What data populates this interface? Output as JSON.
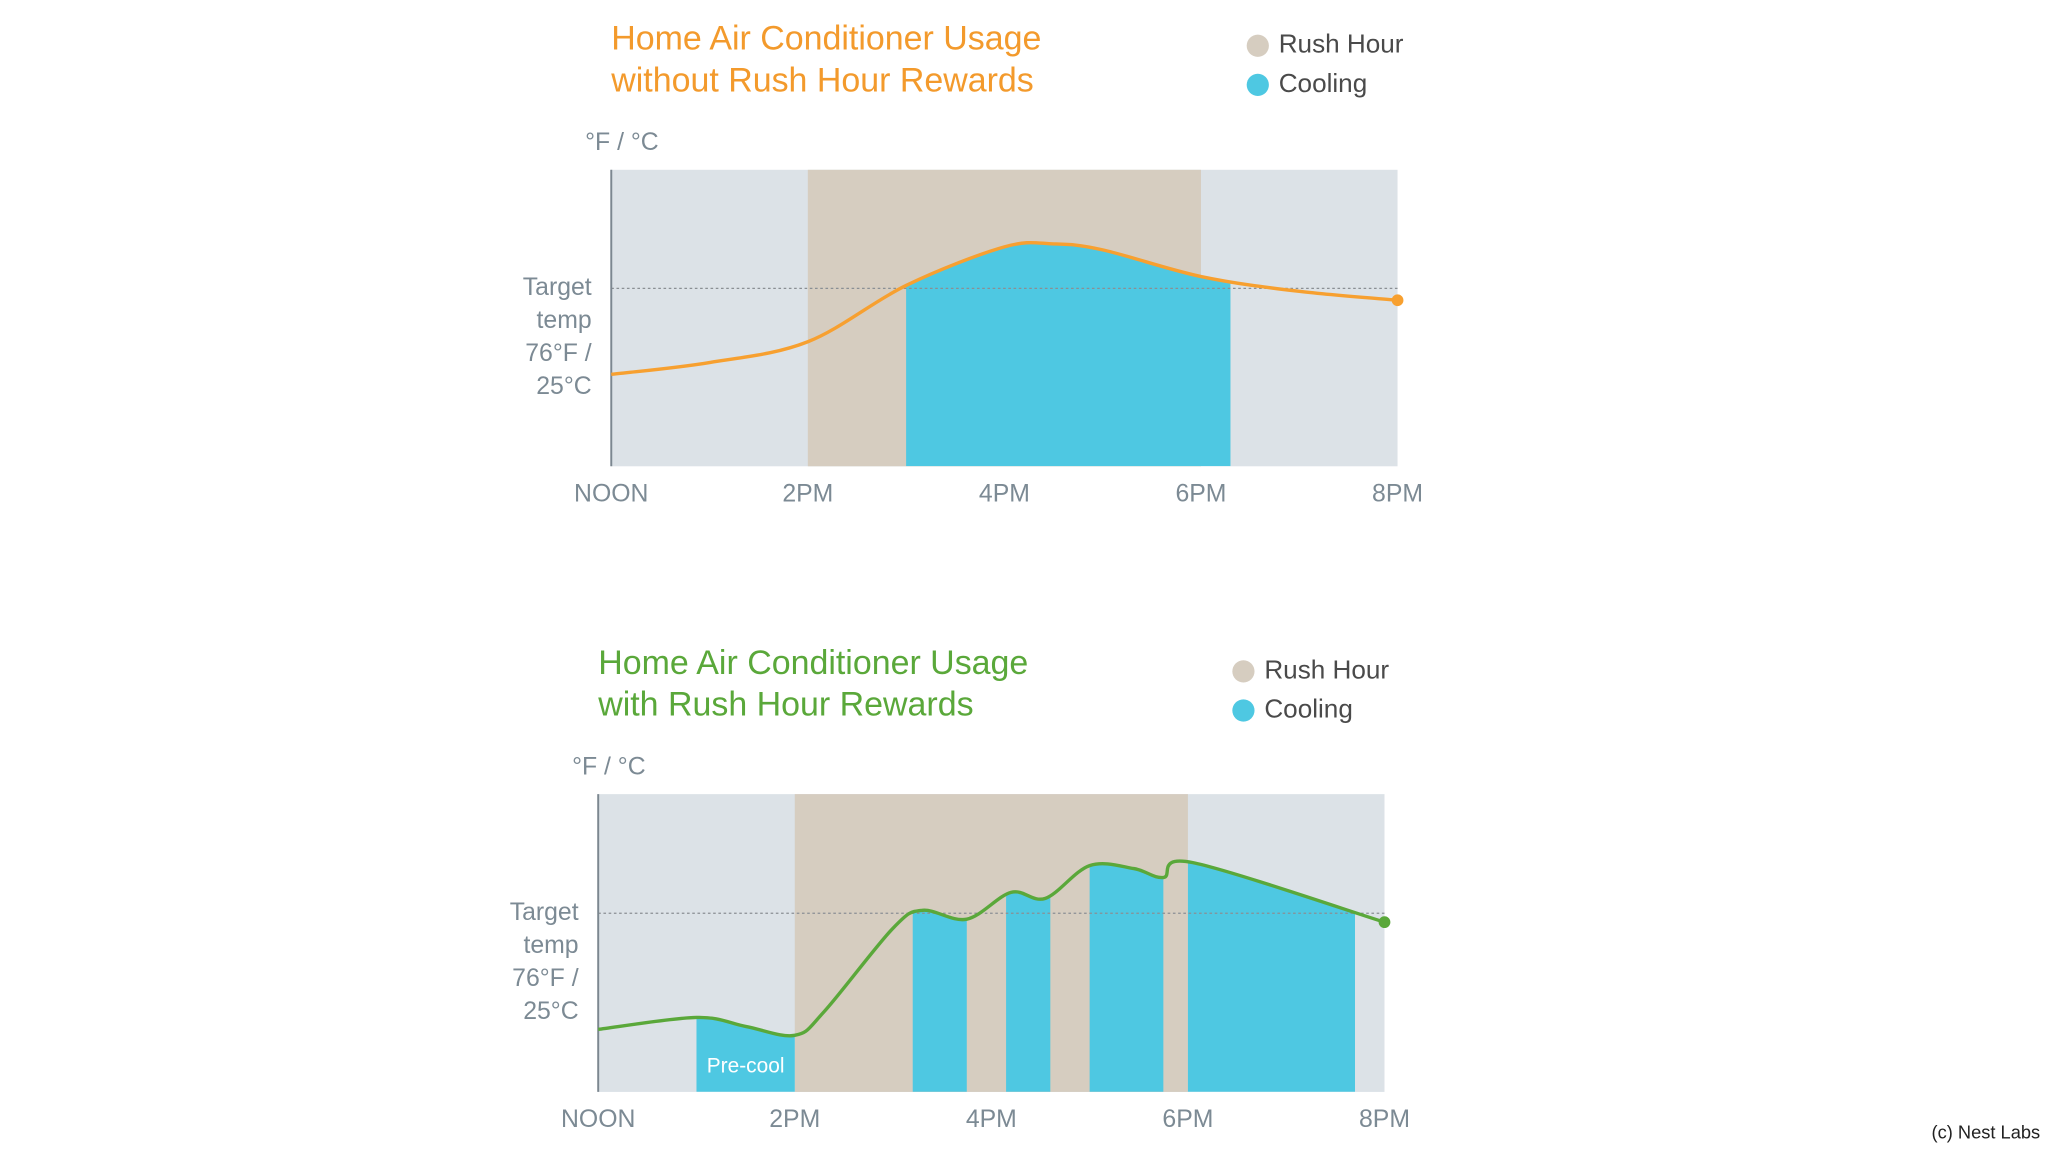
{
  "chart_data": [
    {
      "type": "line",
      "title": [
        "Home Air Conditioner Usage",
        "without Rush Hour Rewards"
      ],
      "title_color": "#f39a2c",
      "y_label": "°F / °C",
      "target": 76,
      "target_label": [
        "Target",
        "temp",
        "76°F /",
        "25°C"
      ],
      "x": [
        12,
        13,
        14,
        15,
        16,
        16.5,
        17,
        18,
        19,
        20
      ],
      "values": [
        73.1,
        73.5,
        74.2,
        76.1,
        77.4,
        77.5,
        77.3,
        76.4,
        75.9,
        75.6
      ],
      "color": "#f7a030",
      "bands": [
        {
          "name": "Rush Hour",
          "color": "#d6cdc0",
          "ranges": [
            [
              14,
              18
            ]
          ]
        },
        {
          "name": "Cooling",
          "color": "#4ec8e2",
          "ranges": [
            [
              15,
              18.3
            ]
          ]
        }
      ],
      "xlim": [
        12,
        20
      ],
      "xticks": [
        {
          "value": 12,
          "label": "NOON"
        },
        {
          "value": 14,
          "label": "2PM"
        },
        {
          "value": 16,
          "label": "4PM"
        },
        {
          "value": 18,
          "label": "6PM"
        },
        {
          "value": 20,
          "label": "8PM"
        }
      ],
      "ylim": [
        70,
        80
      ],
      "grid": false
    },
    {
      "type": "line",
      "title": [
        "Home Air Conditioner Usage",
        "with Rush Hour Rewards"
      ],
      "title_color": "#5aa83a",
      "y_label": "°F / °C",
      "target": 76,
      "target_label": [
        "Target",
        "temp",
        "76°F /",
        "25°C"
      ],
      "x": [
        12,
        13,
        13.5,
        14,
        14.3,
        15,
        15.3,
        15.75,
        16.2,
        16.55,
        17,
        17.45,
        17.75,
        18.05,
        20
      ],
      "values": [
        72.1,
        72.5,
        72.2,
        71.9,
        72.7,
        75.5,
        76.1,
        75.8,
        76.7,
        76.5,
        77.6,
        77.5,
        77.2,
        77.7,
        75.7
      ],
      "color": "#5aa83a",
      "bands": [
        {
          "name": "Rush Hour",
          "color": "#d6cdc0",
          "ranges": [
            [
              14,
              18
            ]
          ]
        },
        {
          "name": "Cooling",
          "color": "#4ec8e2",
          "ranges": [
            [
              13,
              14
            ],
            [
              15.2,
              15.75
            ],
            [
              16.15,
              16.6
            ],
            [
              17,
              17.75
            ],
            [
              18,
              19.7
            ]
          ]
        }
      ],
      "annotation": "Pre-cool",
      "xlim": [
        12,
        20
      ],
      "xticks": [
        {
          "value": 12,
          "label": "NOON"
        },
        {
          "value": 14,
          "label": "2PM"
        },
        {
          "value": 16,
          "label": "4PM"
        },
        {
          "value": 18,
          "label": "6PM"
        },
        {
          "value": 20,
          "label": "8PM"
        }
      ],
      "ylim": [
        70,
        80
      ],
      "grid": false
    }
  ],
  "credit": "(c) Nest Labs"
}
